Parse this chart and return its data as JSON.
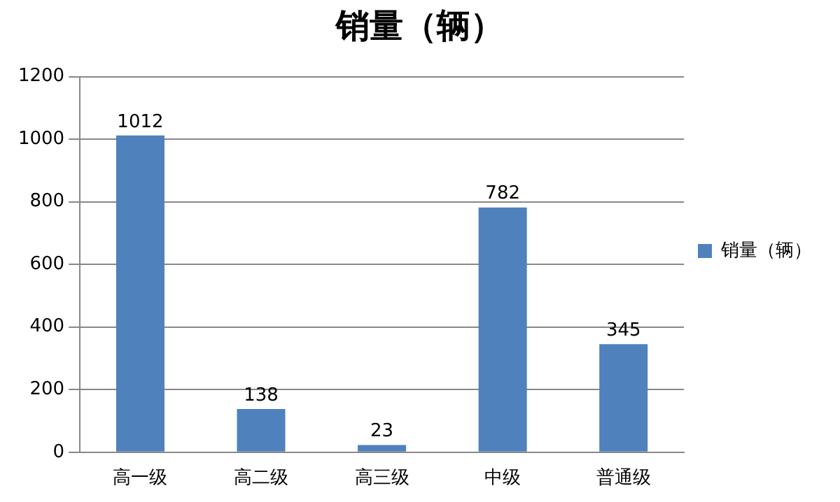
{
  "chart_data": {
    "type": "bar",
    "title": "销量（辆）",
    "categories": [
      "高一级",
      "高二级",
      "高三级",
      "中级",
      "普通级"
    ],
    "series": [
      {
        "name": "销量（辆）",
        "color": "#4f81bd",
        "values": [
          1012,
          138,
          23,
          782,
          345
        ]
      }
    ],
    "ylim": [
      0,
      1200
    ],
    "yticks": [
      0,
      200,
      400,
      600,
      800,
      1000,
      1200
    ],
    "grid": "y",
    "legend": "right",
    "data_labels": true
  }
}
